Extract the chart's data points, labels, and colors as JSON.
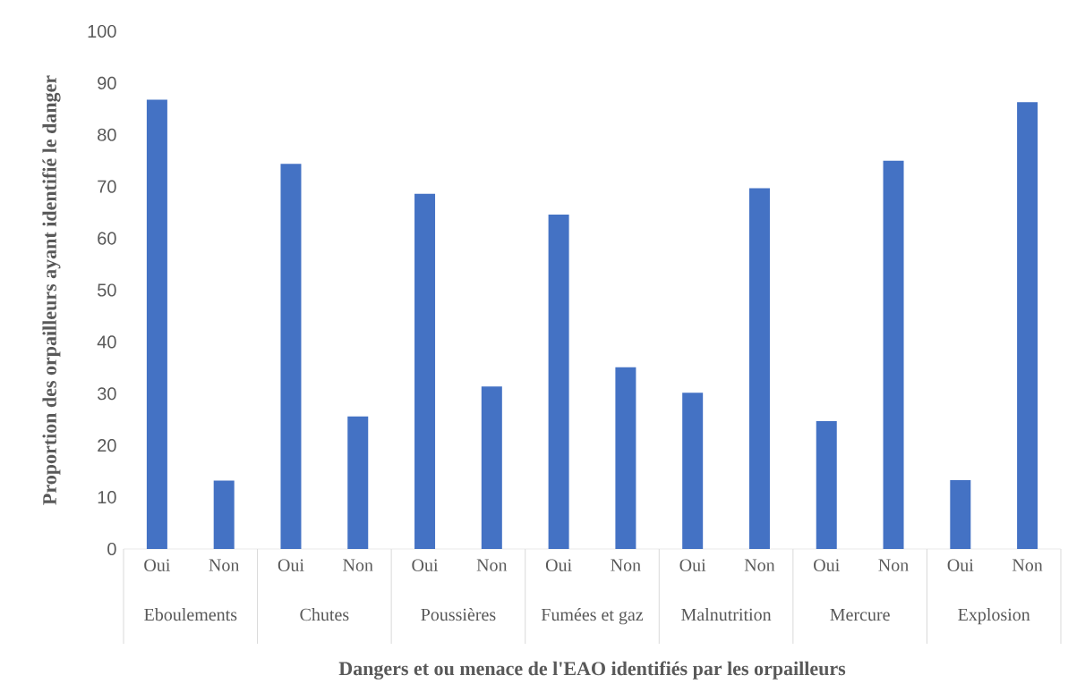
{
  "chart_data": {
    "type": "bar",
    "xlabel": "Dangers et ou menace de l'EAO identifiés par les orpailleurs",
    "ylabel": "Proportion des orpailleurs  ayant identifié  le danger",
    "categories": [
      "Oui",
      "Non",
      "Oui",
      "Non",
      "Oui",
      "Non",
      "Oui",
      "Non",
      "Oui",
      "Non",
      "Oui",
      "Non",
      "Oui",
      "Non"
    ],
    "values": [
      86.8,
      13.2,
      74.4,
      25.6,
      68.6,
      31.4,
      64.6,
      35.1,
      30.2,
      69.7,
      24.7,
      75.0,
      13.3,
      86.3
    ],
    "color": "#4472c4",
    "annotations": [
      "Eboulements",
      "Chutes",
      "Poussières",
      "Fumées et gaz",
      "Malnutrition",
      "Mercure",
      "Explosion"
    ],
    "ylim": [
      0,
      100
    ],
    "yticks": [
      0,
      10,
      20,
      30,
      40,
      50,
      60,
      70,
      80,
      90,
      100
    ]
  }
}
